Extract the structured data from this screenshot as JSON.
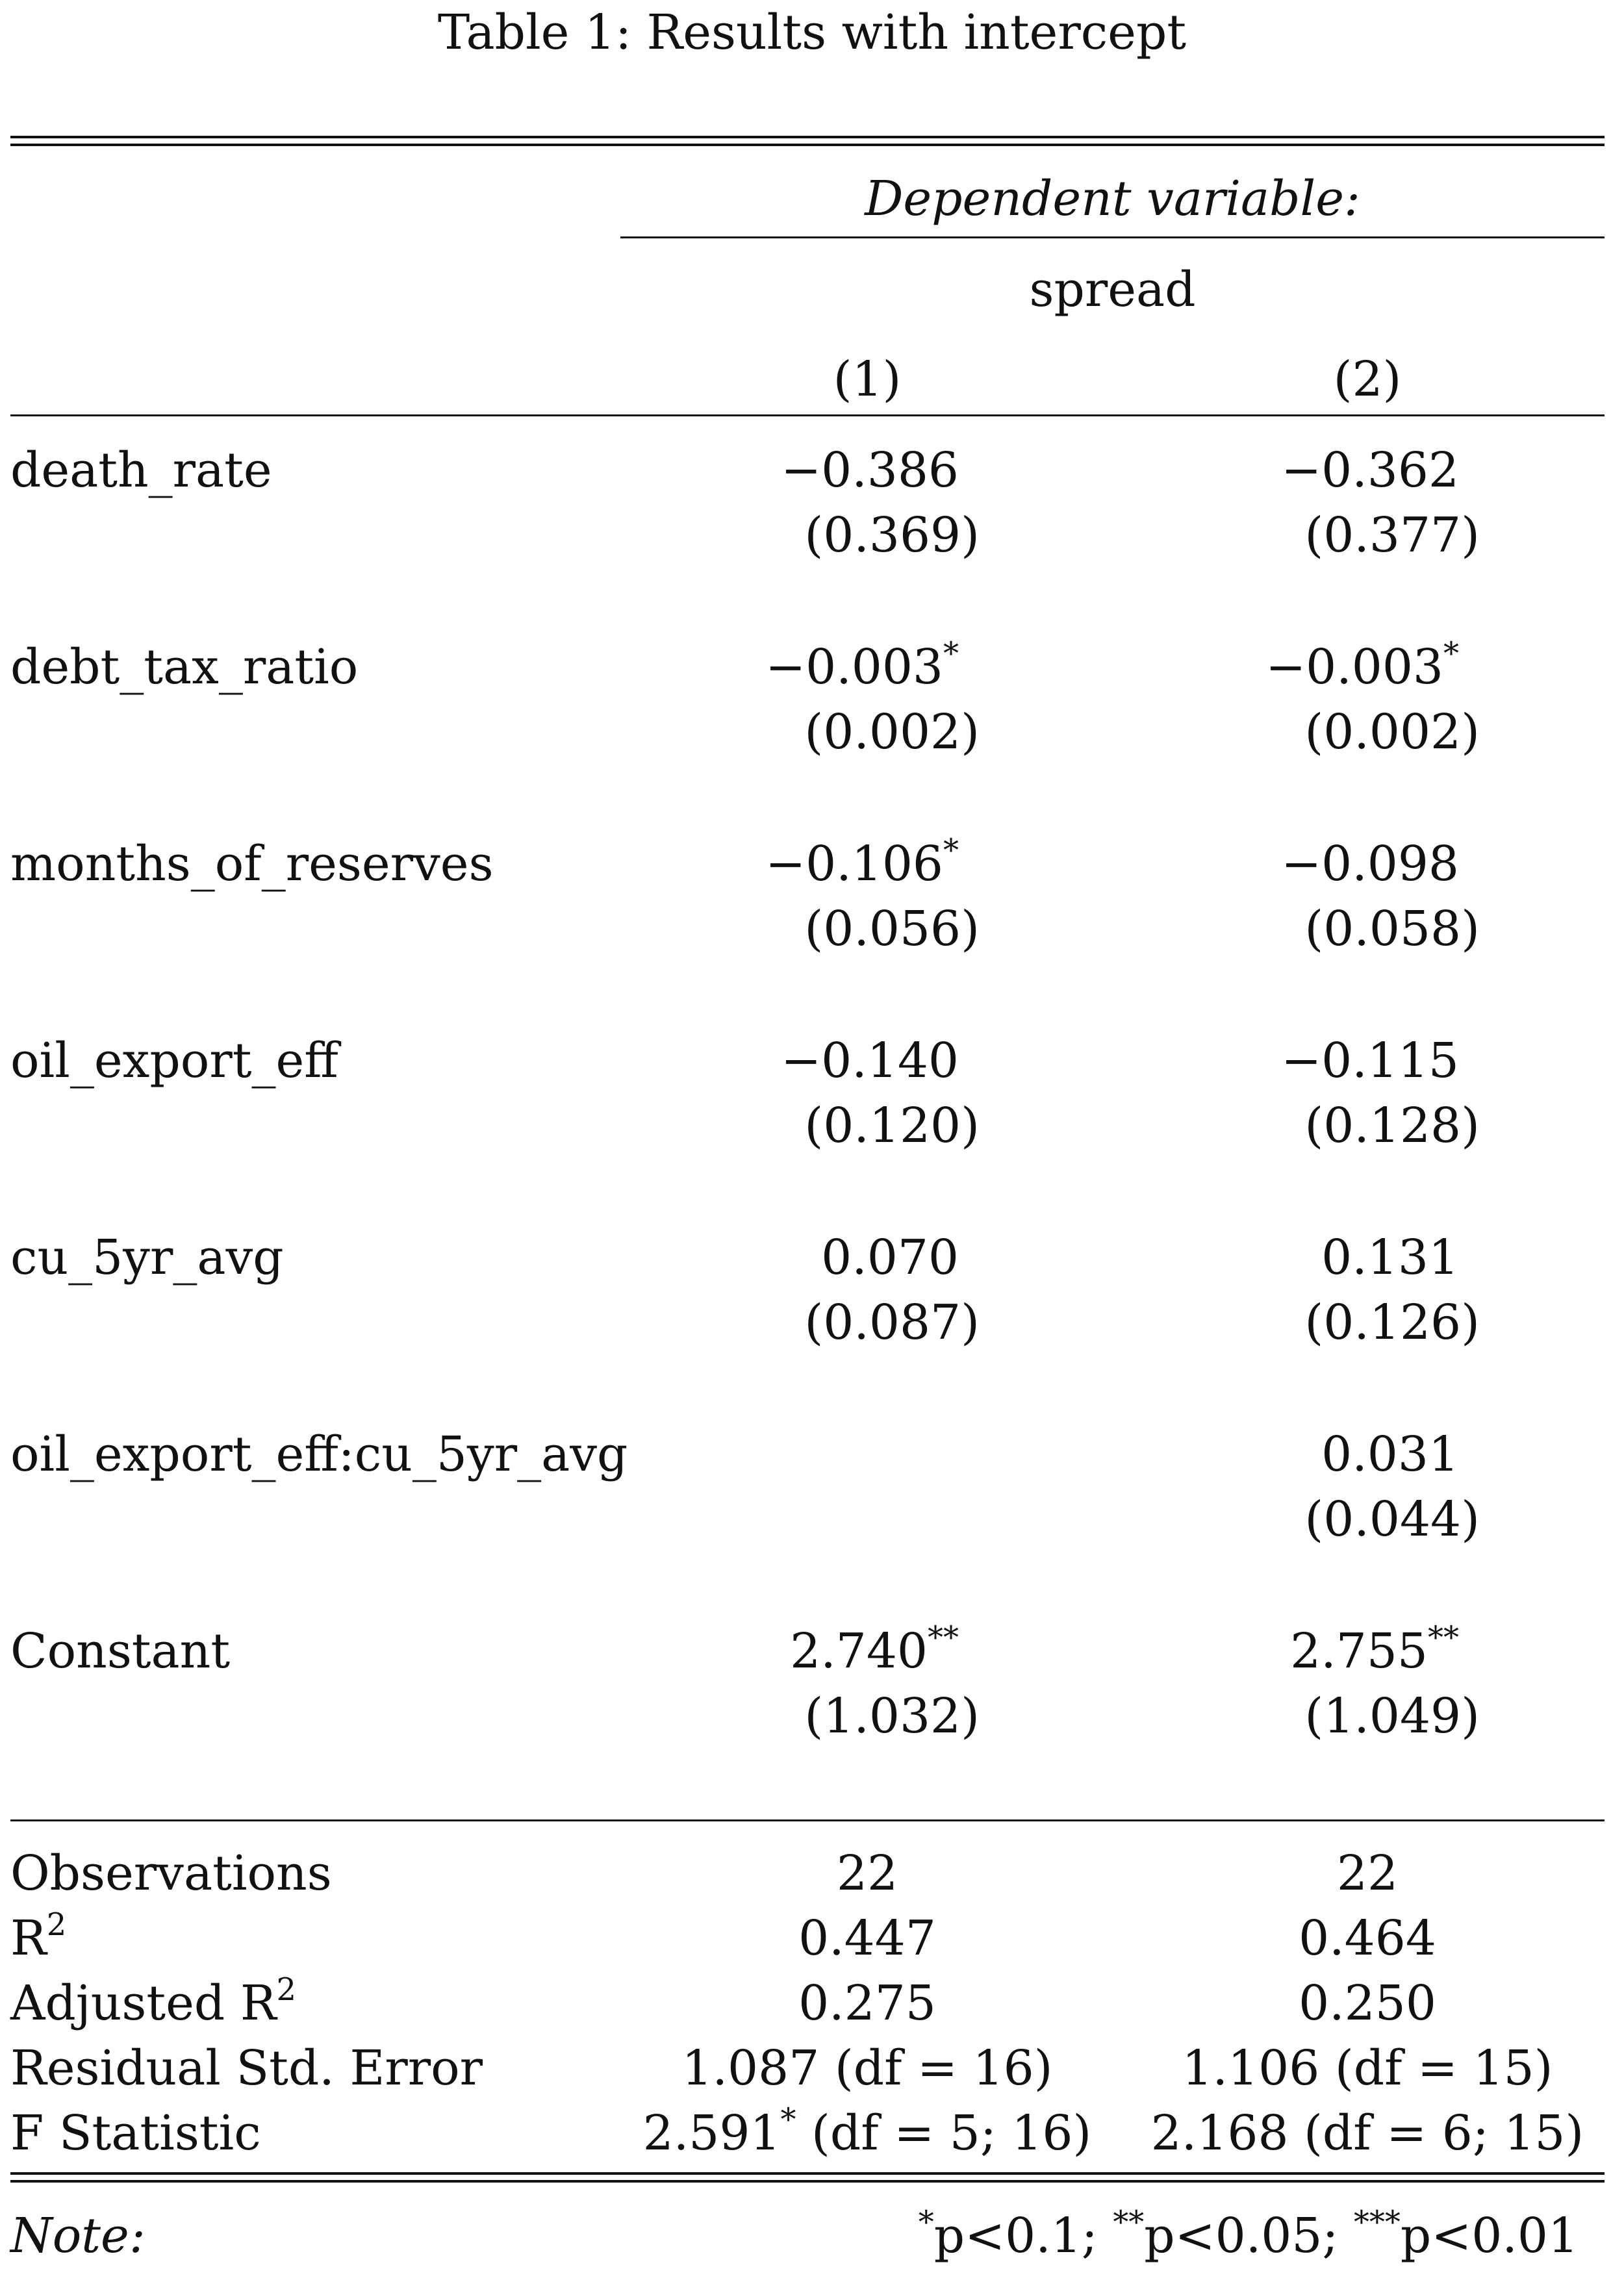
{
  "caption": "Table 1: Results with intercept",
  "header": {
    "dependent_label": "Dependent variable:",
    "dependent_var": "spread",
    "columns": [
      "(1)",
      "(2)"
    ]
  },
  "rows": [
    {
      "label": "death_rate",
      "col1": {
        "coef": "−0.386",
        "stars": "",
        "se": "(0.369)"
      },
      "col2": {
        "coef": "−0.362",
        "stars": "",
        "se": "(0.377)"
      }
    },
    {
      "label": "debt_tax_ratio",
      "col1": {
        "coef": "−0.003",
        "stars": "*",
        "se": "(0.002)"
      },
      "col2": {
        "coef": "−0.003",
        "stars": "*",
        "se": "(0.002)"
      }
    },
    {
      "label": "months_of_reserves",
      "col1": {
        "coef": "−0.106",
        "stars": "*",
        "se": "(0.056)"
      },
      "col2": {
        "coef": "−0.098",
        "stars": "",
        "se": "(0.058)"
      }
    },
    {
      "label": "oil_export_eff",
      "col1": {
        "coef": "−0.140",
        "stars": "",
        "se": "(0.120)"
      },
      "col2": {
        "coef": "−0.115",
        "stars": "",
        "se": "(0.128)"
      }
    },
    {
      "label": "cu_5yr_avg",
      "col1": {
        "coef": "0.070",
        "stars": "",
        "se": "(0.087)"
      },
      "col2": {
        "coef": "0.131",
        "stars": "",
        "se": "(0.126)"
      }
    },
    {
      "label": "oil_export_eff:cu_5yr_avg",
      "col1": {
        "coef": "",
        "stars": "",
        "se": ""
      },
      "col2": {
        "coef": "0.031",
        "stars": "",
        "se": "(0.044)"
      }
    },
    {
      "label": "Constant",
      "col1": {
        "coef": "2.740",
        "stars": "**",
        "se": "(1.032)"
      },
      "col2": {
        "coef": "2.755",
        "stars": "**",
        "se": "(1.049)"
      }
    }
  ],
  "stats": {
    "observations": {
      "label": "Observations",
      "col1": "22",
      "col2": "22"
    },
    "r2": {
      "label": "R",
      "sup": "2",
      "col1": "0.447",
      "col2": "0.464"
    },
    "adj_r2": {
      "label": "Adjusted R",
      "sup": "2",
      "col1": "0.275",
      "col2": "0.250"
    },
    "rse": {
      "label": "Residual Std. Error",
      "col1": "1.087 (df = 16)",
      "col2": "1.106 (df = 15)"
    },
    "fstat": {
      "label": "F Statistic",
      "col1": {
        "value": "2.591",
        "stars": "*",
        "df": " (df = 5; 16)"
      },
      "col2": {
        "value": "2.168",
        "stars": "",
        "df": " (df = 6; 15)"
      }
    }
  },
  "note": {
    "label": "Note:",
    "s1": "*",
    "t1": "p<0.1; ",
    "s2": "**",
    "t2": "p<0.05; ",
    "s3": "***",
    "t3": "p<0.01"
  }
}
